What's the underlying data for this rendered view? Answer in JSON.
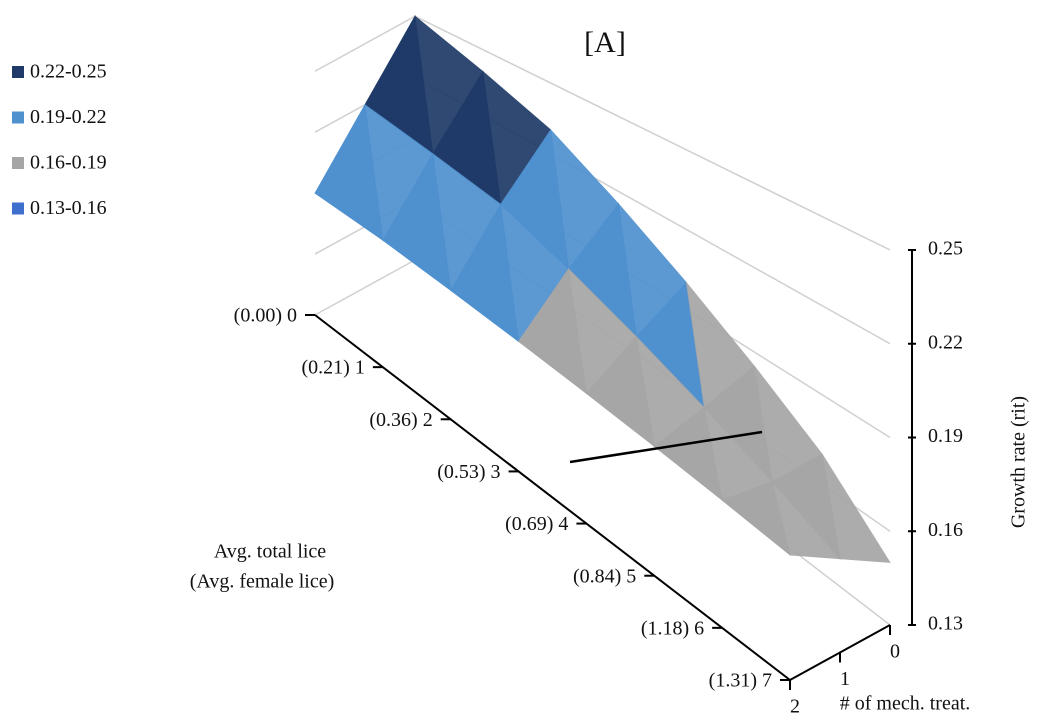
{
  "chart_data": {
    "type": "surface",
    "title": "[A]",
    "legend": [
      {
        "name": "0.22-0.25",
        "range": [
          0.22,
          0.25
        ],
        "color": "#1f3a68"
      },
      {
        "name": "0.19-0.22",
        "range": [
          0.19,
          0.22
        ],
        "color": "#4f90cf"
      },
      {
        "name": "0.16-0.19",
        "range": [
          0.16,
          0.19
        ],
        "color": "#a6a6a6"
      },
      {
        "name": "0.13-0.16",
        "range": [
          0.13,
          0.16
        ],
        "color": "#3f6fcc"
      }
    ],
    "lice_label": [
      "Avg. total lice",
      "(Avg. female lice)"
    ],
    "lice_categories": [
      "(0.00) 0",
      "(0.21) 1",
      "(0.36) 2",
      "(0.53) 3",
      "(0.69) 4",
      "(0.84) 5",
      "(1.18) 6",
      "(1.31) 7"
    ],
    "treat_label": "# of mech. treat.",
    "treatments": [
      0,
      1,
      2
    ],
    "zlabel": "Growth rate (rit)",
    "zlim": [
      0.13,
      0.25
    ],
    "zticks": [
      0.13,
      0.16,
      0.19,
      0.22,
      0.25
    ],
    "values": [
      [
        0.25,
        0.22,
        0.19
      ],
      [
        0.24,
        0.215,
        0.188
      ],
      [
        0.23,
        0.21,
        0.185
      ],
      [
        0.215,
        0.2,
        0.182
      ],
      [
        0.2,
        0.19,
        0.179
      ],
      [
        0.185,
        0.18,
        0.176
      ],
      [
        0.17,
        0.17,
        0.173
      ],
      [
        0.15,
        0.16,
        0.17
      ]
    ]
  }
}
